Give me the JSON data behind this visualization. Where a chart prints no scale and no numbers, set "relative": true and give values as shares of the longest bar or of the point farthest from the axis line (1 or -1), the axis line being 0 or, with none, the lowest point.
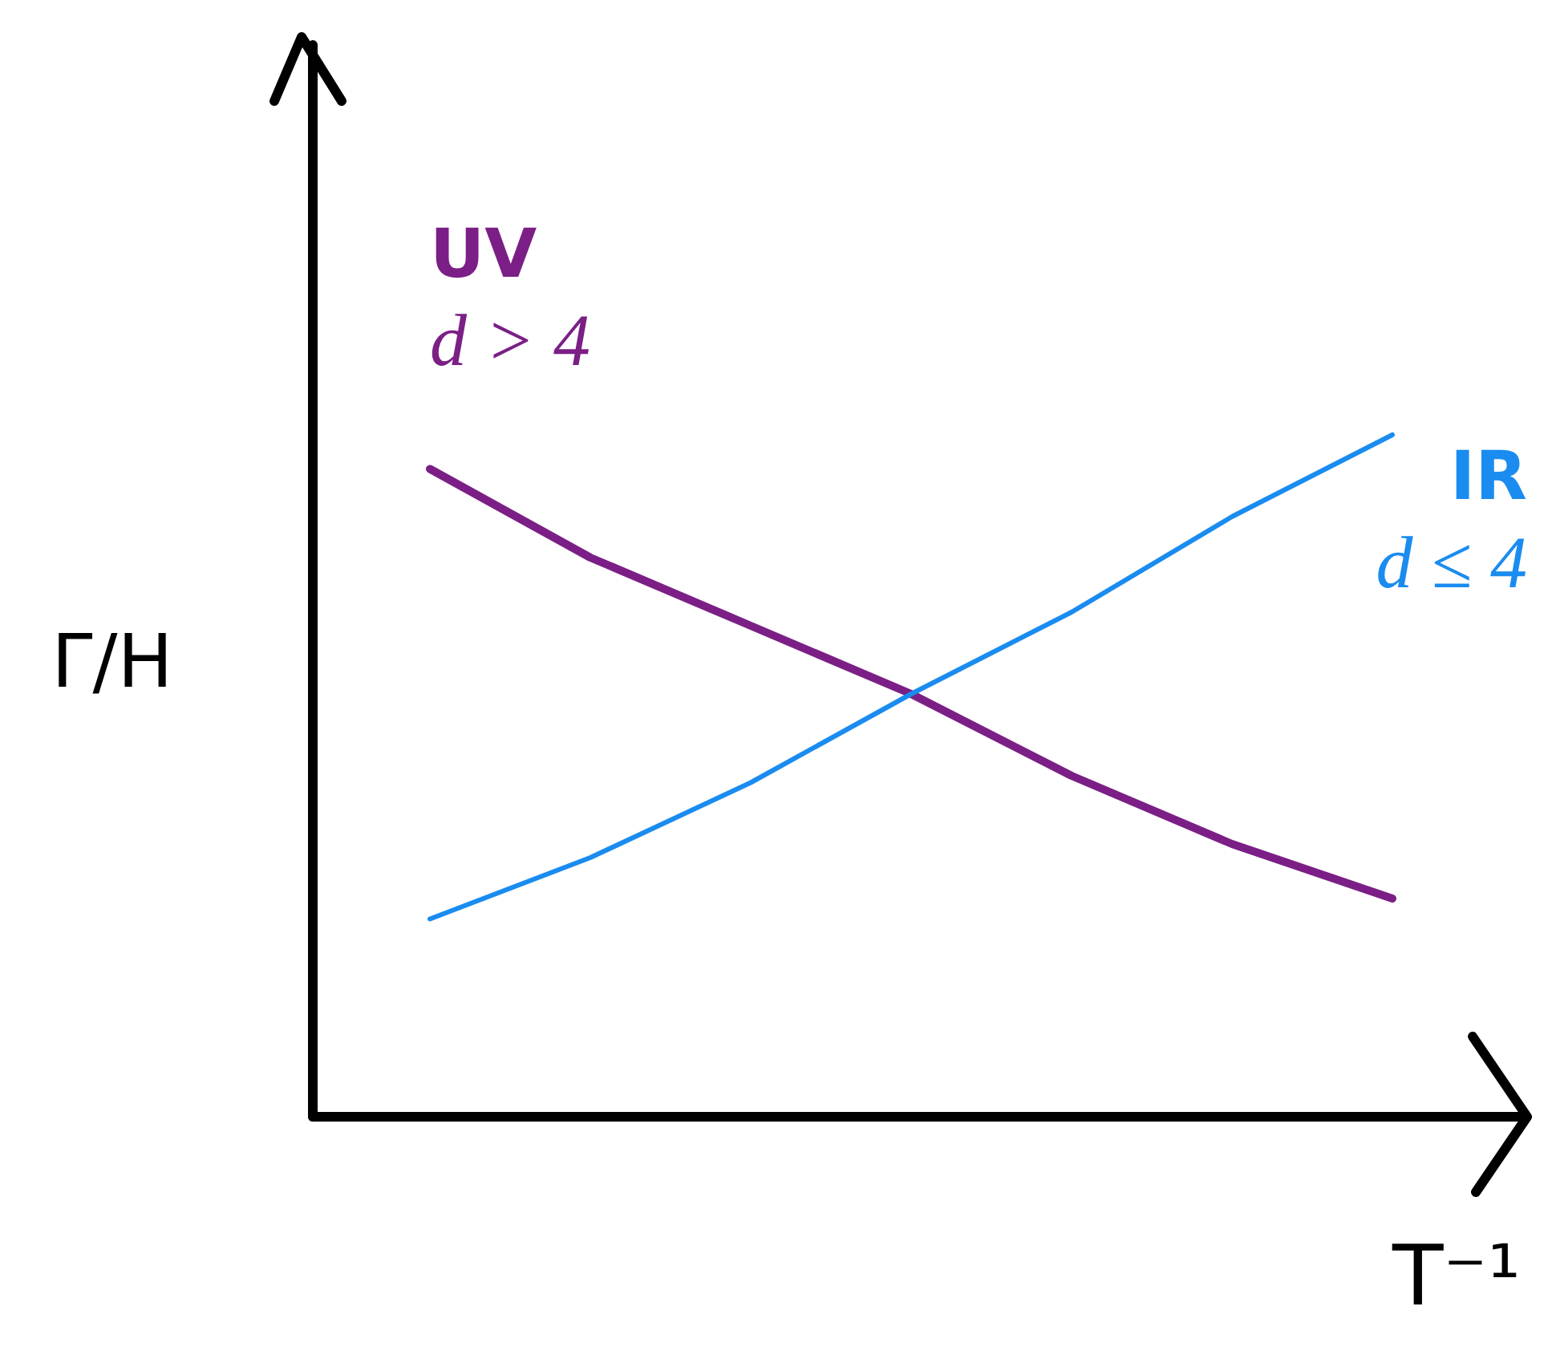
{
  "chart_data": {
    "type": "line",
    "relative": true,
    "xlabel": "T⁻¹",
    "ylabel": "Γ/H",
    "categories": [
      null,
      null,
      null,
      null,
      null,
      null,
      null
    ],
    "legend": false,
    "grid": false,
    "marker": "none",
    "line_style": "solid",
    "series": [
      {
        "name": "UV",
        "color": "#7b1f86",
        "values": [
          0.95,
          0.82,
          0.72,
          0.62,
          0.5,
          0.4,
          0.32
        ]
      },
      {
        "name": "IR",
        "color": "#1a8cf0",
        "values": [
          0.29,
          0.38,
          0.49,
          0.62,
          0.74,
          0.88,
          1.0
        ]
      }
    ],
    "annotations": [
      "d > 4",
      "d ≤ 4"
    ]
  }
}
